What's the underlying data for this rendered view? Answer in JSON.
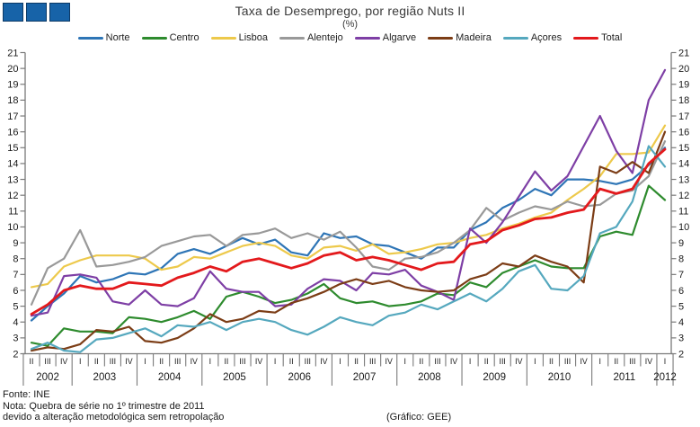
{
  "logo": {
    "name": "three-blue-squares-logo",
    "square_fill": "#1763A8",
    "square_border": "#0D3A66"
  },
  "header": {
    "title": "Taxa de Desemprego, por região Nuts II",
    "subtitle": "(%)"
  },
  "footer": {
    "fonte": "Fonte: INE",
    "nota_line1": "Nota: Quebra de série no 1º trimestre de 2011",
    "nota_line2": "devido a alteração metodológica sem retropolação",
    "credito": "(Gráfico: GEE)"
  },
  "chart_data": {
    "type": "line",
    "title": "Taxa de Desemprego, por região Nuts II",
    "subtitle": "(%)",
    "xlabel": "",
    "ylabel": "",
    "ylim": [
      2,
      21
    ],
    "y_tick_step": 1,
    "dual_y_axis": true,
    "grid": false,
    "legend_position": "top",
    "axis_color": "#7a7a7a",
    "x_quarter_labels": [
      "II",
      "III",
      "IV",
      "I",
      "II",
      "III",
      "IV",
      "I",
      "II",
      "III",
      "IV",
      "I",
      "II",
      "III",
      "IV",
      "I",
      "II",
      "III",
      "IV",
      "I",
      "II",
      "III",
      "IV",
      "I",
      "II",
      "III",
      "IV",
      "I",
      "II",
      "III",
      "IV",
      "I",
      "II",
      "III",
      "IV",
      "I",
      "II",
      "III",
      "IV",
      "I"
    ],
    "x_year_groups": [
      {
        "label": "2002",
        "quarters": 3
      },
      {
        "label": "2003",
        "quarters": 4
      },
      {
        "label": "2004",
        "quarters": 4
      },
      {
        "label": "2005",
        "quarters": 4
      },
      {
        "label": "2006",
        "quarters": 4
      },
      {
        "label": "2007",
        "quarters": 4
      },
      {
        "label": "2008",
        "quarters": 4
      },
      {
        "label": "2009",
        "quarters": 4
      },
      {
        "label": "2010",
        "quarters": 4
      },
      {
        "label": "2011",
        "quarters": 4
      },
      {
        "label": "2012",
        "quarters": 1
      }
    ],
    "series": [
      {
        "name": "Norte",
        "color": "#2E75B6",
        "values": [
          4.1,
          5.0,
          5.8,
          6.9,
          6.5,
          6.7,
          7.1,
          7.0,
          7.4,
          8.3,
          8.6,
          8.3,
          8.8,
          9.3,
          8.9,
          9.2,
          8.4,
          8.2,
          9.6,
          9.3,
          9.4,
          8.9,
          8.8,
          8.4,
          8.0,
          8.7,
          8.7,
          9.8,
          10.3,
          11.2,
          11.7,
          12.4,
          12.0,
          13.0,
          13.0,
          12.9,
          12.7,
          13.0,
          13.9,
          15.0
        ]
      },
      {
        "name": "Centro",
        "color": "#2E8B2E",
        "values": [
          2.7,
          2.5,
          3.6,
          3.4,
          3.4,
          3.3,
          4.3,
          4.2,
          4.0,
          4.3,
          4.7,
          4.2,
          5.6,
          5.9,
          5.6,
          5.2,
          5.4,
          5.8,
          6.4,
          5.5,
          5.2,
          5.3,
          5.0,
          5.1,
          5.3,
          5.8,
          5.7,
          6.5,
          6.2,
          7.1,
          7.5,
          7.9,
          7.5,
          7.4,
          7.4,
          9.4,
          9.7,
          9.5,
          12.6,
          11.7
        ]
      },
      {
        "name": "Lisboa",
        "color": "#EDC94B",
        "values": [
          6.2,
          6.4,
          7.5,
          7.9,
          8.2,
          8.2,
          8.2,
          8.0,
          7.3,
          7.5,
          8.1,
          8.0,
          8.4,
          8.8,
          9.0,
          8.8,
          8.2,
          8.0,
          8.7,
          8.8,
          8.5,
          8.9,
          8.3,
          8.4,
          8.6,
          8.9,
          9.0,
          9.3,
          9.5,
          9.9,
          10.2,
          10.6,
          10.9,
          11.7,
          12.4,
          13.2,
          14.6,
          14.6,
          14.7,
          16.4
        ]
      },
      {
        "name": "Alentejo",
        "color": "#999999",
        "values": [
          5.1,
          7.4,
          8.0,
          9.8,
          7.5,
          7.6,
          7.8,
          8.1,
          8.8,
          9.1,
          9.4,
          9.5,
          8.8,
          9.5,
          9.6,
          9.9,
          9.3,
          9.6,
          9.2,
          9.7,
          8.7,
          7.5,
          7.3,
          8.0,
          8.1,
          8.4,
          9.0,
          9.8,
          11.2,
          10.4,
          10.9,
          11.3,
          11.1,
          11.6,
          11.3,
          11.4,
          12.1,
          12.3,
          13.2,
          15.4
        ]
      },
      {
        "name": "Algarve",
        "color": "#7E3FA5",
        "values": [
          4.4,
          4.6,
          6.9,
          7.0,
          6.8,
          5.3,
          5.1,
          6.0,
          5.1,
          5.0,
          5.5,
          7.2,
          6.1,
          5.9,
          5.9,
          5.0,
          5.1,
          6.1,
          6.7,
          6.6,
          6.0,
          7.1,
          7.0,
          7.3,
          6.3,
          5.9,
          5.4,
          9.9,
          9.0,
          10.3,
          11.9,
          13.5,
          12.3,
          13.2,
          15.1,
          17.0,
          14.8,
          13.4,
          18.0,
          19.9
        ]
      },
      {
        "name": "Madeira",
        "color": "#7C3D16",
        "values": [
          2.2,
          2.4,
          2.3,
          2.6,
          3.5,
          3.4,
          3.7,
          2.8,
          2.7,
          3.0,
          3.6,
          4.5,
          4.0,
          4.2,
          4.7,
          4.6,
          5.2,
          5.5,
          5.9,
          6.4,
          6.7,
          6.4,
          6.6,
          6.2,
          6.0,
          5.9,
          6.0,
          6.7,
          7.0,
          7.7,
          7.5,
          8.2,
          7.8,
          7.5,
          6.5,
          13.8,
          13.4,
          14.1,
          13.4,
          16.0
        ]
      },
      {
        "name": "Açores",
        "color": "#55A8BE",
        "values": [
          2.3,
          2.7,
          2.2,
          2.1,
          2.9,
          3.0,
          3.3,
          3.6,
          3.1,
          3.8,
          3.7,
          4.0,
          3.5,
          4.0,
          4.2,
          4.0,
          3.5,
          3.2,
          3.7,
          4.3,
          4.0,
          3.8,
          4.4,
          4.6,
          5.1,
          4.8,
          5.3,
          5.8,
          5.3,
          6.1,
          7.2,
          7.6,
          6.1,
          6.0,
          6.9,
          9.6,
          10.0,
          11.6,
          15.1,
          13.8
        ]
      },
      {
        "name": "Total",
        "color": "#E3191C",
        "values": [
          4.5,
          5.1,
          6.0,
          6.3,
          6.1,
          6.1,
          6.5,
          6.4,
          6.3,
          6.8,
          7.1,
          7.5,
          7.2,
          7.8,
          8.0,
          7.7,
          7.4,
          7.7,
          8.2,
          8.4,
          7.9,
          8.1,
          7.9,
          7.6,
          7.3,
          7.7,
          7.8,
          8.9,
          9.1,
          9.8,
          10.1,
          10.5,
          10.6,
          10.9,
          11.1,
          12.4,
          12.1,
          12.4,
          14.0,
          14.9
        ]
      }
    ]
  }
}
